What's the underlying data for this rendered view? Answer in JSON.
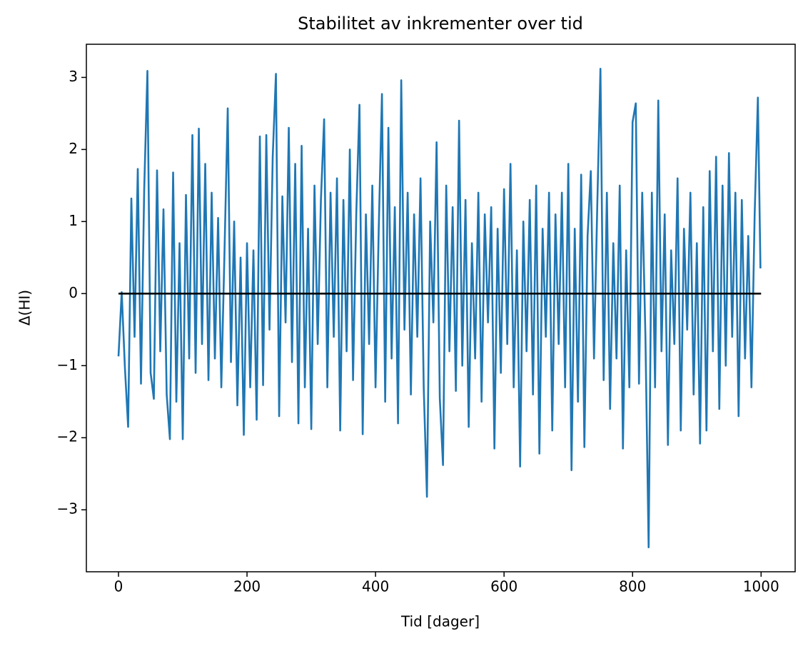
{
  "chart_data": {
    "type": "line",
    "title": "Stabilitet av inkrementer over tid",
    "xlabel": "Tid [dager]",
    "ylabel": "Δ(HI)",
    "xlim": [
      -50,
      1053
    ],
    "ylim": [
      -3.86,
      3.46
    ],
    "xticks": [
      0,
      200,
      400,
      600,
      800,
      1000
    ],
    "yticks": [
      {
        "value": -3,
        "label": "−3"
      },
      {
        "value": -2,
        "label": "−2"
      },
      {
        "value": -1,
        "label": "−1"
      },
      0,
      1,
      2,
      3
    ],
    "series": [
      {
        "color": "#1f77b4",
        "x": [
          0,
          5,
          10,
          15,
          20,
          25,
          30,
          35,
          40,
          45,
          50,
          55,
          60,
          65,
          70,
          75,
          80,
          85,
          90,
          95,
          100,
          105,
          110,
          115,
          120,
          125,
          130,
          135,
          140,
          145,
          150,
          155,
          160,
          165,
          170,
          175,
          180,
          185,
          190,
          195,
          200,
          205,
          210,
          215,
          220,
          225,
          230,
          235,
          240,
          245,
          250,
          255,
          260,
          265,
          270,
          275,
          280,
          285,
          290,
          295,
          300,
          305,
          310,
          315,
          320,
          325,
          330,
          335,
          340,
          345,
          350,
          355,
          360,
          365,
          370,
          375,
          380,
          385,
          390,
          395,
          400,
          405,
          410,
          415,
          420,
          425,
          430,
          435,
          440,
          445,
          450,
          455,
          460,
          465,
          470,
          475,
          480,
          485,
          490,
          495,
          500,
          505,
          510,
          515,
          520,
          525,
          530,
          535,
          540,
          545,
          550,
          555,
          560,
          565,
          570,
          575,
          580,
          585,
          590,
          595,
          600,
          605,
          610,
          615,
          620,
          625,
          630,
          635,
          640,
          645,
          650,
          655,
          660,
          665,
          670,
          675,
          680,
          685,
          690,
          695,
          700,
          705,
          710,
          715,
          720,
          725,
          730,
          735,
          740,
          745,
          750,
          755,
          760,
          765,
          770,
          775,
          780,
          785,
          790,
          795,
          800,
          805,
          810,
          815,
          820,
          825,
          830,
          835,
          840,
          845,
          850,
          855,
          860,
          865,
          870,
          875,
          880,
          885,
          890,
          895,
          900,
          905,
          910,
          915,
          920,
          925,
          930,
          935,
          940,
          945,
          950,
          955,
          960,
          965,
          970,
          975,
          980,
          985,
          990,
          995,
          999
        ],
        "values": [
          -0.87,
          0.02,
          -1.03,
          -1.85,
          1.32,
          -0.6,
          1.73,
          -1.25,
          1.44,
          3.09,
          -1.1,
          -1.46,
          1.71,
          -0.8,
          1.17,
          -1.4,
          -2.02,
          1.68,
          -1.5,
          0.7,
          -2.02,
          1.37,
          -0.9,
          2.2,
          -1.1,
          2.29,
          -0.7,
          1.8,
          -1.2,
          1.4,
          -0.9,
          1.05,
          -1.3,
          0.6,
          2.57,
          -0.95,
          1.0,
          -1.55,
          0.5,
          -1.96,
          0.7,
          -1.3,
          0.6,
          -1.75,
          2.18,
          -1.27,
          2.2,
          -0.5,
          1.9,
          3.05,
          -1.7,
          1.35,
          -0.4,
          2.3,
          -0.95,
          1.8,
          -1.8,
          2.05,
          -1.3,
          0.9,
          -1.88,
          1.5,
          -0.7,
          1.3,
          2.42,
          -1.3,
          1.4,
          -0.6,
          1.6,
          -1.9,
          1.3,
          -0.8,
          2.0,
          -1.2,
          1.1,
          2.62,
          -1.95,
          1.1,
          -0.7,
          1.5,
          -1.3,
          0.9,
          2.77,
          -1.5,
          2.3,
          -0.9,
          1.2,
          -1.8,
          2.96,
          -0.5,
          1.4,
          -1.4,
          1.1,
          -0.6,
          1.6,
          -1.3,
          -2.82,
          1.0,
          -0.4,
          2.1,
          -1.45,
          -2.38,
          1.5,
          -0.8,
          1.2,
          -1.35,
          2.4,
          -1.0,
          1.3,
          -1.85,
          0.7,
          -0.9,
          1.4,
          -1.5,
          1.1,
          -0.4,
          1.2,
          -2.15,
          0.9,
          -1.1,
          1.45,
          -0.7,
          1.8,
          -1.3,
          0.6,
          -2.4,
          1.0,
          -0.8,
          1.3,
          -1.4,
          1.5,
          -2.22,
          0.9,
          -0.6,
          1.4,
          -1.9,
          1.1,
          -0.7,
          1.4,
          -1.3,
          1.8,
          -2.45,
          0.9,
          -1.5,
          1.65,
          -2.13,
          0.8,
          1.7,
          -0.9,
          1.2,
          3.12,
          -1.2,
          1.4,
          -1.6,
          0.7,
          -0.9,
          1.5,
          -2.15,
          0.6,
          -1.3,
          2.38,
          2.64,
          -1.25,
          1.4,
          -0.6,
          -3.52,
          1.4,
          -1.3,
          2.68,
          -0.8,
          1.1,
          -2.1,
          0.6,
          -0.7,
          1.6,
          -1.9,
          0.9,
          -0.5,
          1.4,
          -1.4,
          0.7,
          -2.08,
          1.2,
          -1.9,
          1.7,
          -0.8,
          1.9,
          -1.6,
          1.5,
          -1.0,
          1.95,
          -0.6,
          1.4,
          -1.7,
          1.3,
          -0.9,
          0.8,
          -1.3,
          1.1,
          2.72,
          0.35
        ]
      },
      {
        "color": "#000000",
        "x": [
          0,
          1000
        ],
        "values": [
          0,
          0
        ]
      }
    ]
  }
}
